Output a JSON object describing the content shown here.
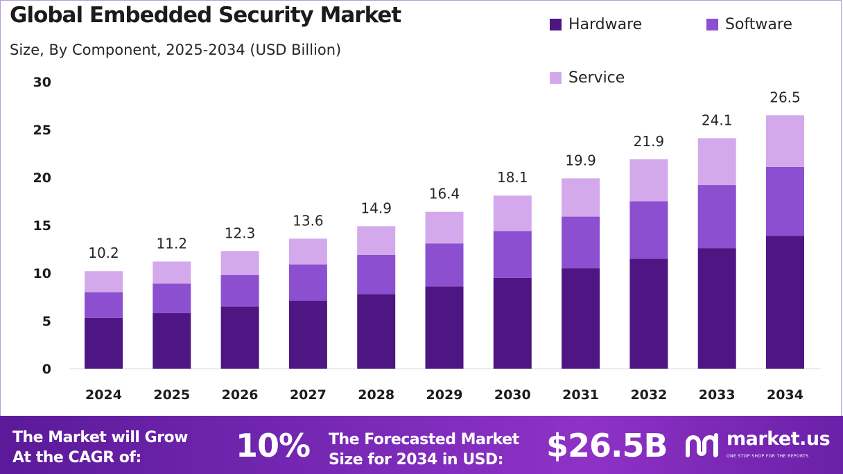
{
  "chart_data": {
    "type": "bar",
    "stacked": true,
    "title": "Global Embedded Security Market",
    "subtitle": "Size, By Component, 2025-2034 (USD Billion)",
    "categories": [
      "2024",
      "2025",
      "2026",
      "2027",
      "2028",
      "2029",
      "2030",
      "2031",
      "2032",
      "2033",
      "2034"
    ],
    "series": [
      {
        "name": "Hardware",
        "color": "#4e1682",
        "values": [
          5.3,
          5.8,
          6.5,
          7.1,
          7.8,
          8.6,
          9.5,
          10.5,
          11.5,
          12.6,
          13.9
        ]
      },
      {
        "name": "Software",
        "color": "#8b4fcf",
        "values": [
          2.7,
          3.1,
          3.3,
          3.8,
          4.1,
          4.5,
          4.9,
          5.4,
          6.0,
          6.6,
          7.2
        ]
      },
      {
        "name": "Service",
        "color": "#d4a9ec",
        "values": [
          2.2,
          2.3,
          2.5,
          2.7,
          3.0,
          3.3,
          3.7,
          4.0,
          4.4,
          4.9,
          5.4
        ]
      }
    ],
    "totals": [
      "10.2",
      "11.2",
      "12.3",
      "13.6",
      "14.9",
      "16.4",
      "18.1",
      "19.9",
      "21.9",
      "24.1",
      "26.5"
    ],
    "yticks": [
      "0",
      "5",
      "10",
      "15",
      "20",
      "25",
      "30"
    ],
    "ylim": [
      0,
      30
    ],
    "grid": false,
    "legend_position": "top-right"
  },
  "footer": {
    "cagr_line1": "The Market will Grow",
    "cagr_line2": "At the CAGR of:",
    "cagr_value": "10%",
    "forecast_line1": "The Forecasted Market",
    "forecast_line2": "Size for 2034 in USD:",
    "forecast_value": "$26.5B",
    "brand_name": "market.us",
    "brand_tagline": "ONE STOP SHOP FOR THE REPORTS"
  }
}
